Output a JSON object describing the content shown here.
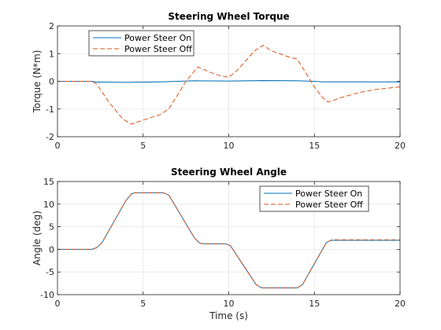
{
  "chart_data": [
    {
      "type": "line",
      "title": "Steering Wheel Torque",
      "xlabel": "",
      "ylabel": "Torque (N*m)",
      "xlim": [
        0,
        20
      ],
      "ylim": [
        -2,
        2
      ],
      "xticks": [
        "0",
        "5",
        "10",
        "15",
        "20"
      ],
      "yticks": [
        "-2",
        "-1",
        "0",
        "1",
        "2"
      ],
      "grid": true,
      "legend": "top-left",
      "series": [
        {
          "name": "Power Steer On",
          "color": "#0072BD",
          "dash": "solid",
          "points": [
            [
              0,
              0
            ],
            [
              2,
              0
            ],
            [
              2.3,
              -0.03
            ],
            [
              4,
              -0.04
            ],
            [
              6,
              -0.02
            ],
            [
              8,
              0.02
            ],
            [
              10,
              0.01
            ],
            [
              12,
              0.03
            ],
            [
              14,
              0.02
            ],
            [
              15,
              0.0
            ],
            [
              15.5,
              -0.02
            ],
            [
              16,
              -0.02
            ],
            [
              20,
              -0.02
            ]
          ]
        },
        {
          "name": "Power Steer Off",
          "color": "#D95319",
          "dash": "dashed",
          "points": [
            [
              0,
              0
            ],
            [
              2,
              0
            ],
            [
              2.3,
              -0.1
            ],
            [
              3,
              -0.75
            ],
            [
              3.8,
              -1.35
            ],
            [
              4.3,
              -1.55
            ],
            [
              5,
              -1.4
            ],
            [
              6,
              -1.2
            ],
            [
              6.5,
              -1.0
            ],
            [
              7,
              -0.5
            ],
            [
              7.5,
              0.0
            ],
            [
              8.2,
              0.52
            ],
            [
              8.8,
              0.35
            ],
            [
              9.5,
              0.2
            ],
            [
              10,
              0.15
            ],
            [
              10.5,
              0.4
            ],
            [
              11.5,
              1.1
            ],
            [
              12,
              1.3
            ],
            [
              12.5,
              1.1
            ],
            [
              13.5,
              0.88
            ],
            [
              14,
              0.8
            ],
            [
              14.5,
              0.3
            ],
            [
              15,
              -0.2
            ],
            [
              15.5,
              -0.6
            ],
            [
              15.8,
              -0.75
            ],
            [
              16.5,
              -0.6
            ],
            [
              17.5,
              -0.42
            ],
            [
              18.5,
              -0.3
            ],
            [
              20,
              -0.2
            ]
          ]
        }
      ]
    },
    {
      "type": "line",
      "title": "Steering Wheel Angle",
      "xlabel": "Time (s)",
      "ylabel": "Angle (deg)",
      "xlim": [
        0,
        20
      ],
      "ylim": [
        -10,
        15
      ],
      "xticks": [
        "0",
        "5",
        "10",
        "15",
        "20"
      ],
      "yticks": [
        "-10",
        "-5",
        "0",
        "5",
        "10",
        "15"
      ],
      "grid": true,
      "legend": "top-right",
      "series": [
        {
          "name": "Power Steer On",
          "color": "#0072BD",
          "dash": "solid",
          "points": [
            [
              0,
              0
            ],
            [
              2,
              0
            ],
            [
              2.3,
              0.4
            ],
            [
              2.6,
              1.5
            ],
            [
              4,
              10.8
            ],
            [
              4.3,
              12.2
            ],
            [
              4.5,
              12.5
            ],
            [
              6.2,
              12.5
            ],
            [
              6.5,
              12.0
            ],
            [
              8,
              2.5
            ],
            [
              8.3,
              1.4
            ],
            [
              8.5,
              1.25
            ],
            [
              9.8,
              1.25
            ],
            [
              10.1,
              0.8
            ],
            [
              11.6,
              -7.8
            ],
            [
              11.9,
              -8.5
            ],
            [
              14,
              -8.5
            ],
            [
              14.3,
              -7.8
            ],
            [
              15.7,
              1.5
            ],
            [
              15.9,
              1.9
            ],
            [
              16,
              2.0
            ],
            [
              20,
              2.0
            ]
          ]
        },
        {
          "name": "Power Steer Off",
          "color": "#D95319",
          "dash": "dashed",
          "points": [
            [
              0,
              0
            ],
            [
              2,
              0
            ],
            [
              2.3,
              0.4
            ],
            [
              2.6,
              1.5
            ],
            [
              4,
              10.8
            ],
            [
              4.3,
              12.2
            ],
            [
              4.5,
              12.5
            ],
            [
              6.2,
              12.5
            ],
            [
              6.5,
              12.0
            ],
            [
              8,
              2.5
            ],
            [
              8.3,
              1.4
            ],
            [
              8.5,
              1.25
            ],
            [
              9.8,
              1.25
            ],
            [
              10.1,
              0.8
            ],
            [
              11.6,
              -7.8
            ],
            [
              11.9,
              -8.5
            ],
            [
              14,
              -8.5
            ],
            [
              14.3,
              -7.8
            ],
            [
              15.7,
              1.5
            ],
            [
              15.9,
              1.9
            ],
            [
              16,
              2.1
            ],
            [
              20,
              2.1
            ]
          ]
        }
      ]
    }
  ]
}
